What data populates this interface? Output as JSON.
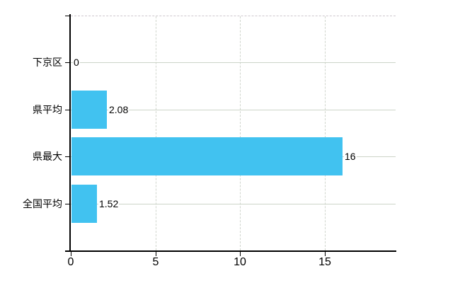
{
  "chart_data": {
    "type": "bar",
    "orientation": "horizontal",
    "title": "",
    "xlabel": "",
    "ylabel": "",
    "categories": [
      "下京区",
      "県平均",
      "県最大",
      "全国平均"
    ],
    "values": [
      0,
      2.08,
      16,
      1.52
    ],
    "value_labels": [
      "0",
      "2.08",
      "16",
      "1.52"
    ],
    "xticks": [
      0,
      5,
      10,
      15
    ],
    "xtick_labels": [
      "0",
      "5",
      "10",
      "15"
    ],
    "xlim": [
      0,
      19.2
    ],
    "grid": true,
    "legend": false,
    "layout_hints": {
      "value_label_position": "right-of-bar-end",
      "horizontal_gridlines": "solid, at each category center",
      "vertical_gridlines": "dashed, at each nonzero x tick",
      "plot_top_border": "dashed"
    },
    "colors": {
      "bar": "#41c2f0",
      "axis": "#000000",
      "text": "#000000",
      "h_gridline": "#ccd4c8",
      "v_gridline": "#d0d5cd",
      "top_border": "#cfc7cd",
      "background": "#ffffff"
    }
  }
}
